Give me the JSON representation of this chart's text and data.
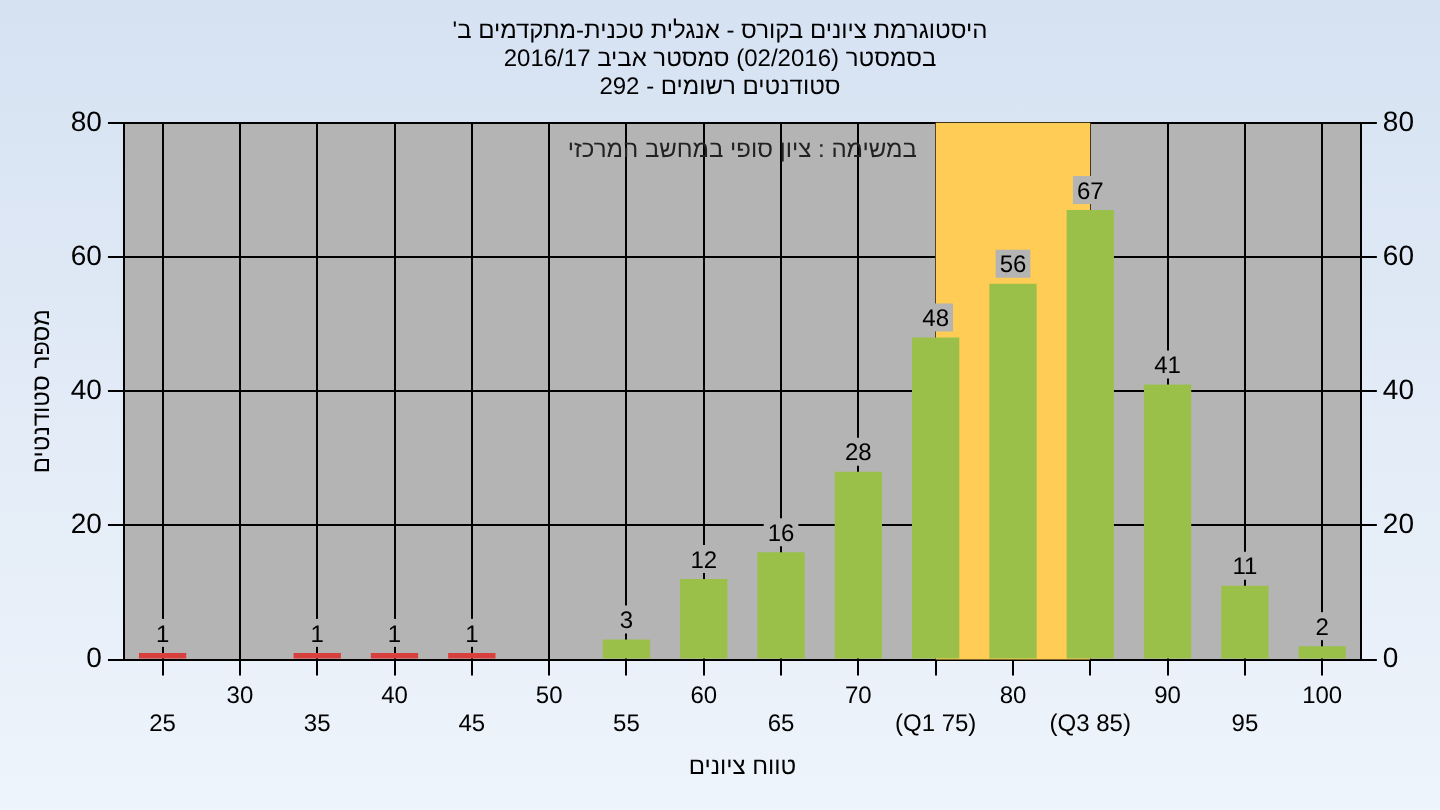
{
  "chart_data": {
    "type": "bar",
    "title": "היסטוגרמת ציונים בקורס - אנגלית טכנית-מתקדמים ב' בסמסטר (02/2016) סמסטר אביב 2016/17",
    "subtitle": "סטודנטים רשומים - 292",
    "xlabel": "טווח ציונים",
    "ylabel": "מספר סטודנטים",
    "categories": [
      "25",
      "30",
      "35",
      "40",
      "45",
      "50",
      "55",
      "60",
      "65",
      "70",
      "(Q1 75)",
      "80",
      "(Q3 85)",
      "90",
      "95",
      "100"
    ],
    "values": [
      1,
      0,
      1,
      1,
      1,
      0,
      3,
      12,
      16,
      28,
      48,
      56,
      67,
      41,
      11,
      2
    ],
    "colors": [
      "#d8403e",
      "#9bc04a",
      "#d8403e",
      "#d8403e",
      "#d8403e",
      "#9bc04a",
      "#9bc04a",
      "#9bc04a",
      "#9bc04a",
      "#9bc04a",
      "#9bc04a",
      "#9bc04a",
      "#9bc04a",
      "#9bc04a",
      "#9bc04a",
      "#9bc04a"
    ],
    "ylim": [
      0,
      80
    ],
    "yticks": [
      0,
      20,
      40,
      60,
      80
    ],
    "y2lim": [
      0,
      80
    ],
    "y2ticks": [
      0,
      20,
      40,
      60,
      80
    ],
    "bands": [
      {
        "axis": "x",
        "from": "(Q1 75)",
        "to": "(Q3 85)",
        "color": "#ffcc55"
      }
    ],
    "annotations": [
      "במשימה : ציון סופי במחשב המרכזי"
    ],
    "value_labels": [
      "1",
      null,
      "1",
      "1",
      "1",
      null,
      "3",
      "12",
      "16",
      "28",
      "48",
      "56",
      "67",
      "41",
      "11",
      "2"
    ],
    "grid": true,
    "legend": false
  }
}
